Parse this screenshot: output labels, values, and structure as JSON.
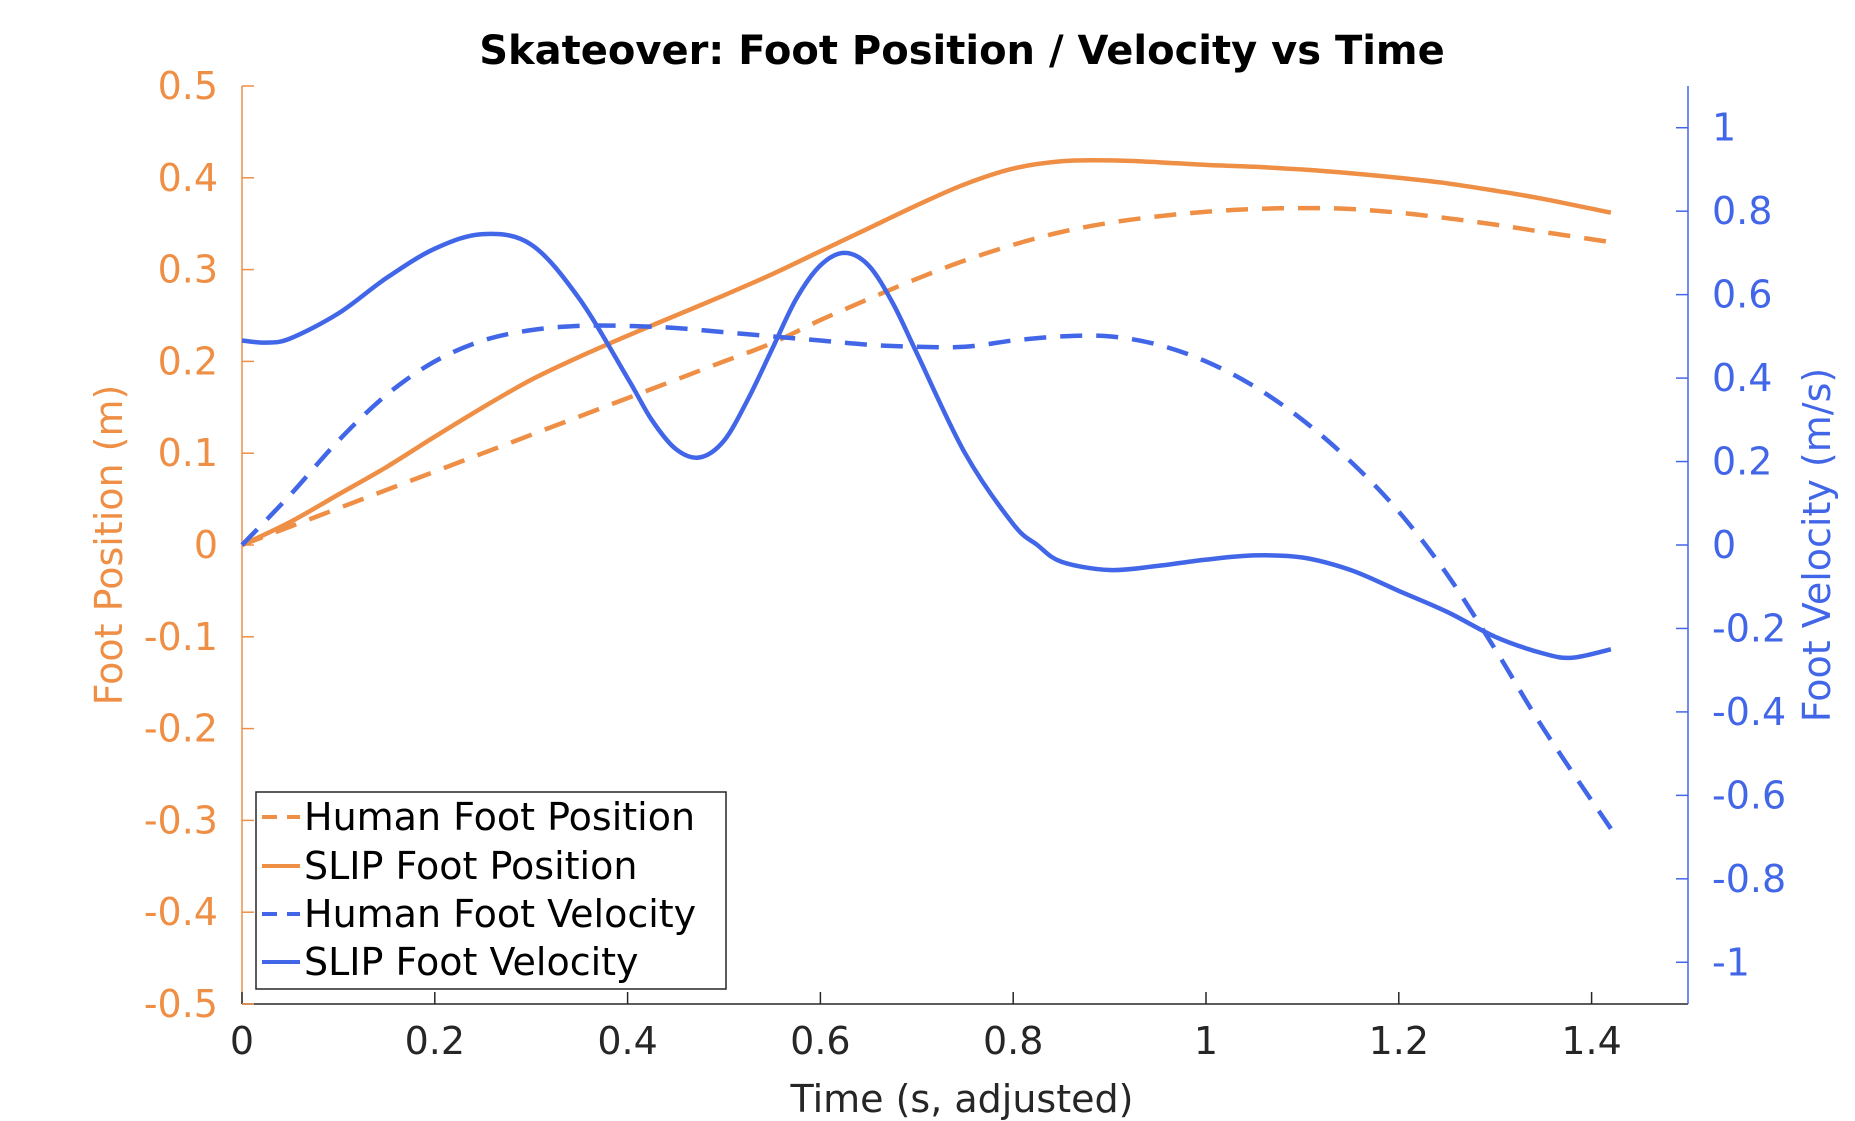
{
  "colors": {
    "position": "#EE8F45",
    "velocity": "#4266E8",
    "axis_x": "#262626"
  },
  "chart_data": {
    "type": "line",
    "title": "Skateover: Foot Position / Velocity vs Time",
    "xlabel": "Time (s, adjusted)",
    "ylabel_left": "Foot Position (m)",
    "ylabel_right": "Foot Velocity (m/s)",
    "xlim": [
      0,
      1.5
    ],
    "ylim_left": [
      -0.5,
      0.5
    ],
    "ylim_right": [
      -1.1,
      1.1
    ],
    "x_ticks": [
      0,
      0.2,
      0.4,
      0.6,
      0.8,
      1,
      1.2,
      1.4
    ],
    "y_ticks_left": [
      -0.5,
      -0.4,
      -0.3,
      -0.2,
      -0.1,
      0,
      0.1,
      0.2,
      0.3,
      0.4,
      0.5
    ],
    "y_ticks_right": [
      -1,
      -0.8,
      -0.6,
      -0.4,
      -0.2,
      0,
      0.2,
      0.4,
      0.6,
      0.8,
      1
    ],
    "grid": false,
    "legend_position": "bottom-left",
    "series": [
      {
        "name": "Human Foot Position",
        "axis": "left",
        "style": "dashed",
        "x": [
          0,
          0.05,
          0.1,
          0.15,
          0.2,
          0.25,
          0.3,
          0.35,
          0.4,
          0.45,
          0.5,
          0.55,
          0.6,
          0.65,
          0.7,
          0.75,
          0.8,
          0.85,
          0.9,
          0.95,
          1.0,
          1.05,
          1.1,
          1.15,
          1.2,
          1.25,
          1.3,
          1.35,
          1.42
        ],
        "y": [
          0,
          0.02,
          0.04,
          0.06,
          0.08,
          0.1,
          0.12,
          0.14,
          0.16,
          0.18,
          0.2,
          0.22,
          0.245,
          0.268,
          0.29,
          0.31,
          0.327,
          0.341,
          0.351,
          0.358,
          0.363,
          0.366,
          0.367,
          0.366,
          0.362,
          0.356,
          0.349,
          0.341,
          0.33
        ]
      },
      {
        "name": "SLIP Foot Position",
        "axis": "left",
        "style": "solid",
        "x": [
          0,
          0.05,
          0.1,
          0.15,
          0.2,
          0.25,
          0.3,
          0.35,
          0.4,
          0.45,
          0.5,
          0.55,
          0.6,
          0.65,
          0.7,
          0.75,
          0.8,
          0.85,
          0.9,
          0.95,
          1.0,
          1.05,
          1.1,
          1.15,
          1.2,
          1.25,
          1.3,
          1.35,
          1.42
        ],
        "y": [
          0,
          0.025,
          0.055,
          0.085,
          0.118,
          0.15,
          0.18,
          0.205,
          0.228,
          0.25,
          0.272,
          0.295,
          0.32,
          0.345,
          0.37,
          0.393,
          0.41,
          0.418,
          0.419,
          0.417,
          0.414,
          0.412,
          0.409,
          0.405,
          0.4,
          0.394,
          0.386,
          0.377,
          0.362
        ]
      },
      {
        "name": "Human Foot Velocity",
        "axis": "right",
        "style": "dashed",
        "x": [
          0,
          0.05,
          0.1,
          0.15,
          0.2,
          0.25,
          0.3,
          0.35,
          0.4,
          0.45,
          0.5,
          0.55,
          0.6,
          0.65,
          0.7,
          0.75,
          0.8,
          0.85,
          0.9,
          0.95,
          1.0,
          1.05,
          1.1,
          1.15,
          1.2,
          1.25,
          1.3,
          1.35,
          1.42
        ],
        "y": [
          0.0,
          0.12,
          0.25,
          0.36,
          0.44,
          0.49,
          0.515,
          0.525,
          0.525,
          0.52,
          0.51,
          0.5,
          0.49,
          0.48,
          0.475,
          0.475,
          0.49,
          0.5,
          0.5,
          0.48,
          0.44,
          0.38,
          0.3,
          0.2,
          0.08,
          -0.07,
          -0.25,
          -0.44,
          -0.68
        ]
      },
      {
        "name": "SLIP Foot Velocity",
        "axis": "right",
        "style": "solid",
        "x": [
          0,
          0.025,
          0.05,
          0.1,
          0.15,
          0.2,
          0.25,
          0.3,
          0.35,
          0.4,
          0.425,
          0.45,
          0.475,
          0.5,
          0.525,
          0.55,
          0.575,
          0.6,
          0.625,
          0.65,
          0.675,
          0.7,
          0.75,
          0.8,
          0.825,
          0.85,
          0.9,
          0.95,
          1.0,
          1.05,
          1.1,
          1.15,
          1.2,
          1.25,
          1.3,
          1.35,
          1.38,
          1.42
        ],
        "y": [
          0.49,
          0.485,
          0.495,
          0.555,
          0.64,
          0.71,
          0.745,
          0.72,
          0.59,
          0.4,
          0.3,
          0.23,
          0.21,
          0.25,
          0.35,
          0.47,
          0.59,
          0.67,
          0.7,
          0.67,
          0.58,
          0.46,
          0.22,
          0.05,
          0.0,
          -0.04,
          -0.06,
          -0.05,
          -0.035,
          -0.025,
          -0.03,
          -0.06,
          -0.11,
          -0.16,
          -0.22,
          -0.26,
          -0.27,
          -0.25
        ]
      }
    ]
  }
}
